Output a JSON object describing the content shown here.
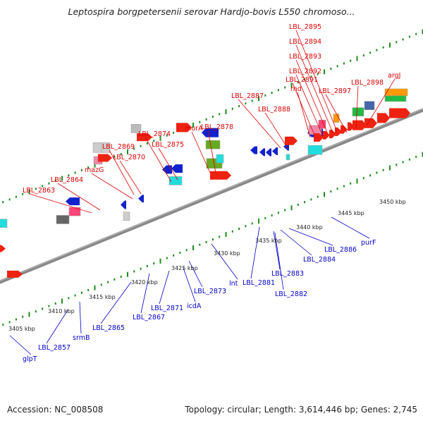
{
  "title": "Leptospira borgpetersenii serovar Hardjo-bovis L550 chromoso...",
  "footer": {
    "accession": "Accession: NC_008508",
    "topology": "Topology: circular; Length: 3,614,446 bp; Genes: 2,745"
  },
  "colors": {
    "forward_label": "#dd0000",
    "reverse_label": "#0000cc",
    "backbone": "#888888",
    "tick": "#1e8c1e"
  },
  "upper_labels": [
    {
      "text": "LBL_2863"
    },
    {
      "text": "LBL_2864"
    },
    {
      "text": "mazG"
    },
    {
      "text": "LBL_2869"
    },
    {
      "text": "LBL_2870"
    },
    {
      "text": "LBL_2874"
    },
    {
      "text": "LBL_2875"
    },
    {
      "text": "murA"
    },
    {
      "text": "LBL_2878"
    },
    {
      "text": "LBL_2887"
    },
    {
      "text": "LBL_2888"
    },
    {
      "text": "rnd"
    },
    {
      "text": "LBL_2891"
    },
    {
      "text": "LBL_2892"
    },
    {
      "text": "LBL_2893"
    },
    {
      "text": "LBL_2894"
    },
    {
      "text": "LBL_2895"
    },
    {
      "text": "LBL_2897"
    },
    {
      "text": "LBL_2898"
    },
    {
      "text": "argJ"
    }
  ],
  "lower_labels": [
    {
      "text": "glpT"
    },
    {
      "text": "LBL_2857"
    },
    {
      "text": "srmB"
    },
    {
      "text": "LBL_2865"
    },
    {
      "text": "LBL_2867"
    },
    {
      "text": "LBL_2871"
    },
    {
      "text": "icdA"
    },
    {
      "text": "LBL_2873"
    },
    {
      "text": "lnt"
    },
    {
      "text": "LBL_2881"
    },
    {
      "text": "LBL_2883"
    },
    {
      "text": "LBL_2882"
    },
    {
      "text": "LBL_2884"
    },
    {
      "text": "LBL_2886"
    },
    {
      "text": "purF"
    }
  ],
  "kbp_ticks": [
    {
      "text": "3405 kbp"
    },
    {
      "text": "3410 kbp"
    },
    {
      "text": "3415 kbp"
    },
    {
      "text": "3420 kbp"
    },
    {
      "text": "3425 kbp"
    },
    {
      "text": "3430 kbp"
    },
    {
      "text": "3435 kbp"
    },
    {
      "text": "3440 kbp"
    },
    {
      "text": "3445 kbp"
    },
    {
      "text": "3450 kbp"
    }
  ]
}
